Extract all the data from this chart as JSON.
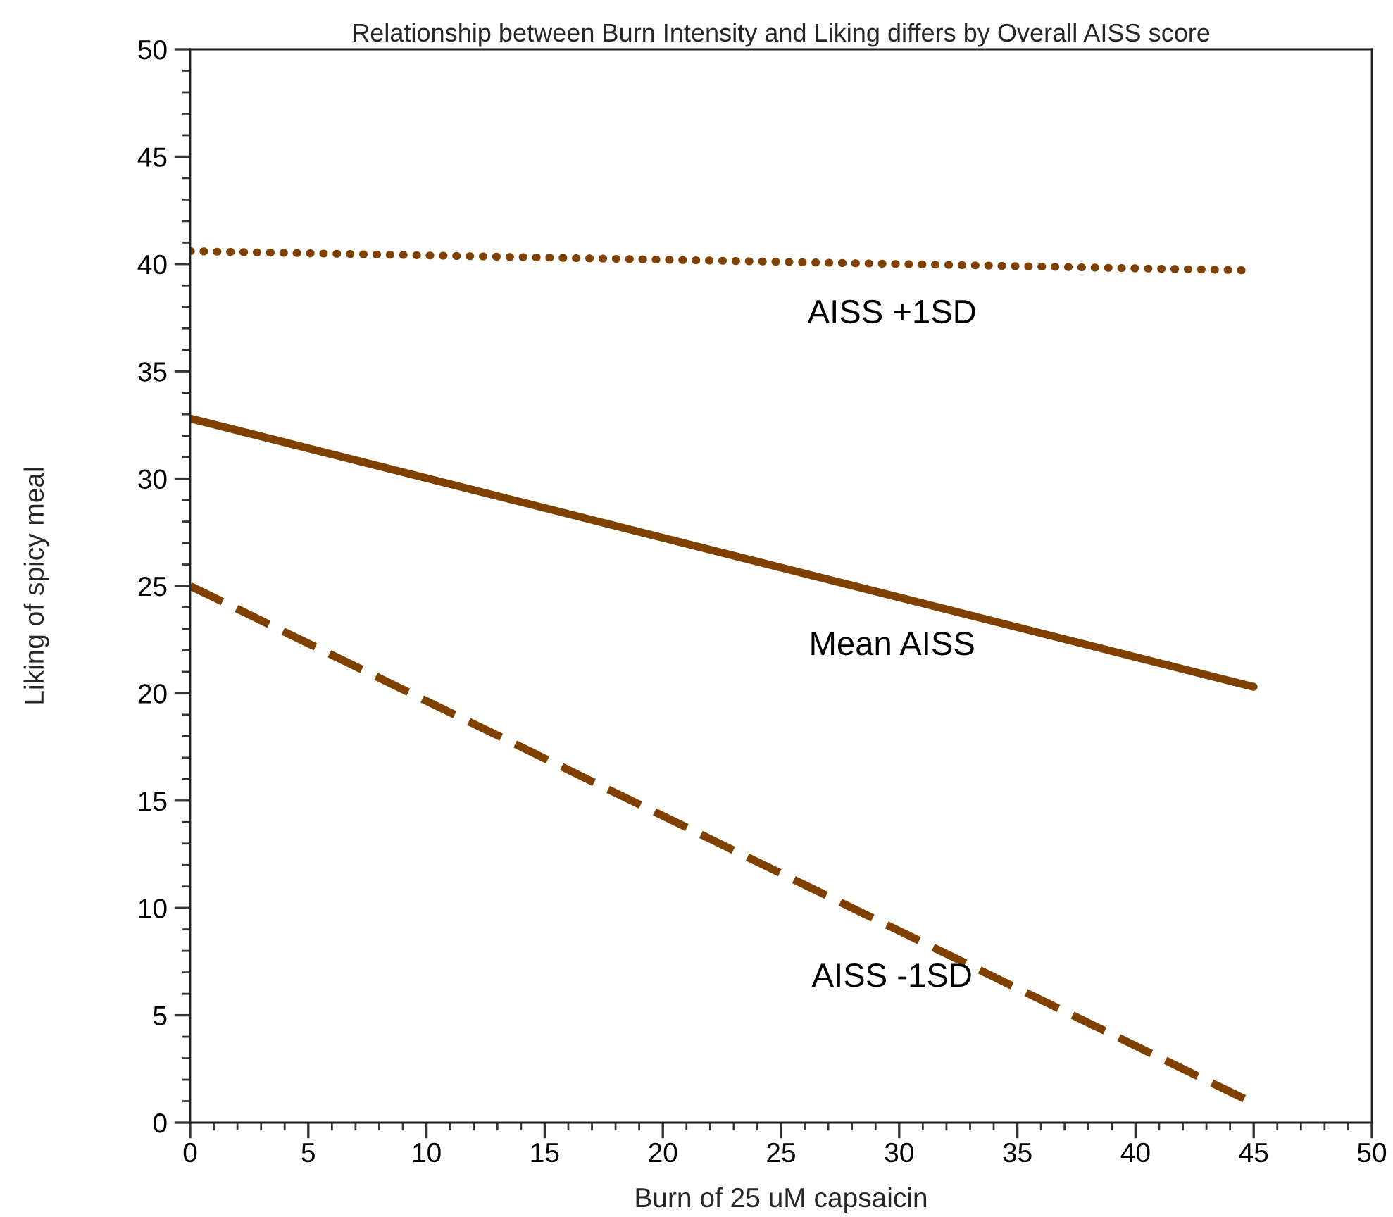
{
  "chart_data": {
    "type": "line",
    "title": "Relationship between Burn Intensity and Liking differs by Overall AISS score",
    "xlabel": "Burn of 25 uM capsaicin",
    "ylabel": "Liking of spicy meal",
    "x": [
      0,
      45
    ],
    "series": [
      {
        "name": "AISS +1SD",
        "color": "#7f4000",
        "line_style": "dotted",
        "values": [
          40.6,
          39.7
        ]
      },
      {
        "name": "Mean AISS",
        "color": "#7f4000",
        "line_style": "solid",
        "values": [
          32.8,
          20.3
        ]
      },
      {
        "name": "AISS -1SD",
        "color": "#7f4000",
        "line_style": "dashed",
        "values": [
          25,
          0.9
        ]
      }
    ],
    "xlim": [
      0,
      50
    ],
    "xticks": [
      0,
      5,
      10,
      15,
      20,
      25,
      30,
      35,
      40,
      45,
      50
    ],
    "ylim": [
      0,
      50
    ],
    "yticks": [
      0,
      5,
      10,
      15,
      20,
      25,
      30,
      35,
      40,
      45,
      50
    ],
    "grid": false,
    "legend": false,
    "marker": "none"
  }
}
